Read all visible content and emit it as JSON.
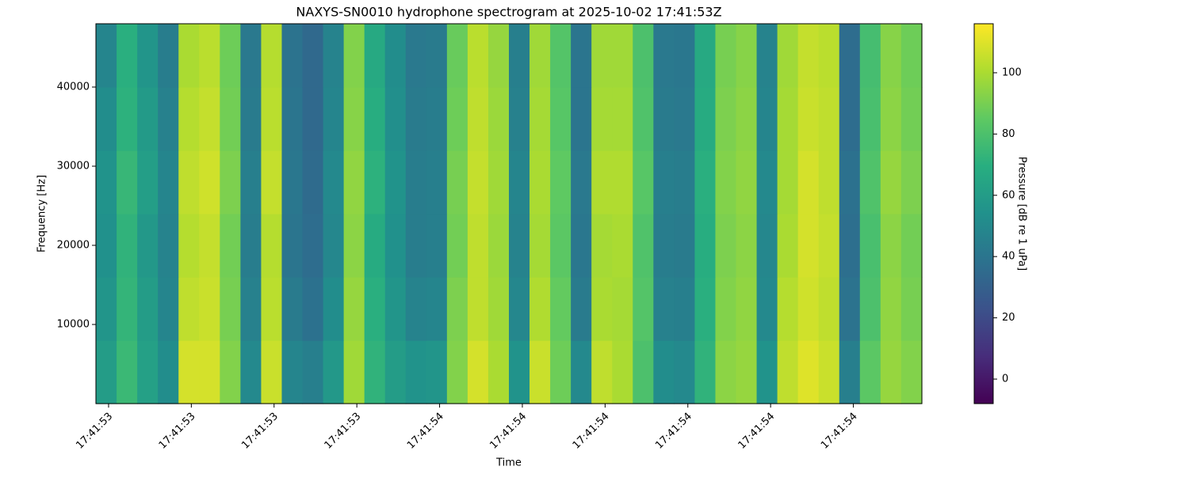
{
  "chart_data": {
    "type": "heatmap",
    "title": "NAXYS-SN0010 hydrophone spectrogram at 2025-10-02 17:41:53Z",
    "xlabel": "Time",
    "ylabel": "Frequency [Hz]",
    "colormap": "viridis",
    "xlim": [
      0.5847,
      1.5828
    ],
    "xticks": [
      {
        "value": 0.6,
        "label": "17:41:53"
      },
      {
        "value": 0.7,
        "label": "17:41:53"
      },
      {
        "value": 0.8,
        "label": "17:41:53"
      },
      {
        "value": 0.9,
        "label": "17:41:53"
      },
      {
        "value": 1.0,
        "label": "17:41:54"
      },
      {
        "value": 1.1,
        "label": "17:41:54"
      },
      {
        "value": 1.2,
        "label": "17:41:54"
      },
      {
        "value": 1.3,
        "label": "17:41:54"
      },
      {
        "value": 1.4,
        "label": "17:41:54"
      },
      {
        "value": 1.5,
        "label": "17:41:54"
      }
    ],
    "ylim": [
      0,
      48000
    ],
    "yticks": [
      10000,
      20000,
      30000,
      40000
    ],
    "x": [
      0.5972,
      0.6222,
      0.6471,
      0.6721,
      0.697,
      0.722,
      0.7469,
      0.7719,
      0.7968,
      0.8218,
      0.8467,
      0.8717,
      0.8966,
      0.9216,
      0.9465,
      0.9715,
      0.9964,
      1.0214,
      1.0463,
      1.0713,
      1.0962,
      1.1212,
      1.1461,
      1.1711,
      1.196,
      1.221,
      1.2459,
      1.2709,
      1.2958,
      1.3208,
      1.3457,
      1.3707,
      1.3956,
      1.4206,
      1.4455,
      1.4705,
      1.4954,
      1.5204,
      1.5453,
      1.5703
    ],
    "y": [
      4000,
      12000,
      20000,
      28000,
      36000,
      44000
    ],
    "z": [
      [
        60,
        75,
        62,
        52,
        108,
        108,
        92,
        50,
        106,
        48,
        45,
        58,
        98,
        72,
        60,
        55,
        56,
        92,
        108,
        100,
        55,
        106,
        88,
        50,
        104,
        100,
        80,
        52,
        50,
        72,
        94,
        96,
        55,
        104,
        110,
        106,
        45,
        84,
        96,
        92
      ],
      [
        56,
        73,
        60,
        48,
        104,
        106,
        90,
        46,
        103,
        43,
        38,
        52,
        96,
        70,
        56,
        47,
        48,
        91,
        104,
        98,
        49,
        101,
        86,
        43,
        100,
        99,
        82,
        46,
        45,
        70,
        92,
        95,
        50,
        102,
        107,
        104,
        39,
        80,
        95,
        90
      ],
      [
        54,
        72,
        58,
        47,
        102,
        105,
        89,
        44,
        102,
        40,
        36,
        49,
        94,
        68,
        54,
        44,
        45,
        89,
        104,
        97,
        47,
        99,
        84,
        41,
        99,
        100,
        81,
        44,
        43,
        69,
        91,
        94,
        49,
        100,
        108,
        105,
        37,
        79,
        94,
        89
      ],
      [
        55,
        74,
        61,
        48,
        104,
        107,
        91,
        45,
        105,
        41,
        35,
        50,
        95,
        71,
        55,
        44,
        45,
        90,
        105,
        98,
        48,
        100,
        85,
        42,
        101,
        101,
        83,
        45,
        44,
        70,
        92,
        95,
        50,
        99,
        108,
        104,
        38,
        81,
        96,
        91
      ],
      [
        52,
        71,
        59,
        46,
        102,
        105,
        89,
        43,
        103,
        40,
        34,
        48,
        93,
        69,
        53,
        43,
        44,
        88,
        104,
        97,
        46,
        99,
        83,
        40,
        99,
        99,
        81,
        43,
        42,
        68,
        91,
        94,
        48,
        99,
        106,
        104,
        36,
        79,
        94,
        89
      ],
      [
        48,
        70,
        56,
        44,
        100,
        103,
        88,
        42,
        102,
        39,
        34,
        47,
        92,
        67,
        52,
        42,
        43,
        87,
        103,
        96,
        45,
        98,
        82,
        40,
        98,
        98,
        80,
        42,
        41,
        67,
        90,
        93,
        47,
        98,
        105,
        103,
        36,
        78,
        93,
        88
      ]
    ],
    "colorbar": {
      "label": "Pressure [dB re 1 uPa]",
      "lim": [
        -8,
        116
      ],
      "ticks": [
        0,
        20,
        40,
        60,
        80,
        100
      ]
    }
  }
}
